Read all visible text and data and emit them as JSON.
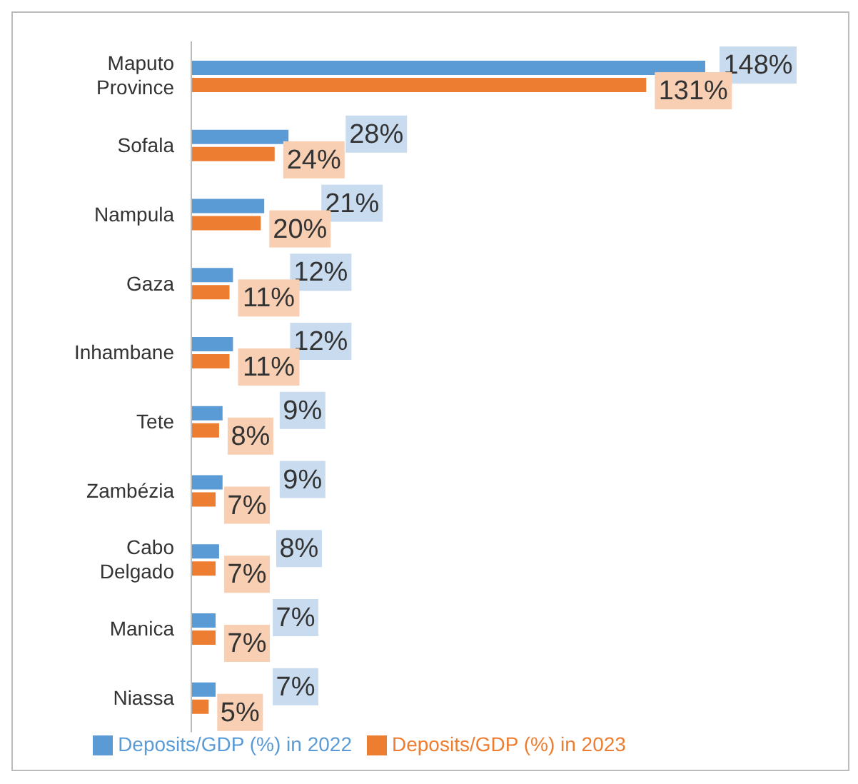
{
  "chart_data": {
    "type": "bar",
    "orientation": "horizontal",
    "categories": [
      "Maputo Province",
      "Sofala",
      "Nampula",
      "Gaza",
      "Inhambane",
      "Tete",
      "Zambézia",
      "Cabo Delgado",
      "Manica",
      "Niassa"
    ],
    "series": [
      {
        "name": "Deposits/GDP (%) in 2022",
        "color": "#5b9bd5",
        "values": [
          148,
          28,
          21,
          12,
          12,
          9,
          9,
          8,
          7,
          7
        ],
        "value_labels": [
          "148%",
          "28%",
          "21%",
          "12%",
          "12%",
          "9%",
          "9%",
          "8%",
          "7%",
          "7%"
        ]
      },
      {
        "name": "Deposits/GDP (%) in 2023",
        "color": "#ed7d31",
        "values": [
          131,
          24,
          20,
          11,
          11,
          8,
          7,
          7,
          7,
          5
        ],
        "value_labels": [
          "131%",
          "24%",
          "20%",
          "11%",
          "11%",
          "8%",
          "7%",
          "7%",
          "7%",
          "5%"
        ]
      }
    ],
    "tick_labels": "y",
    "legend": "bottom"
  }
}
